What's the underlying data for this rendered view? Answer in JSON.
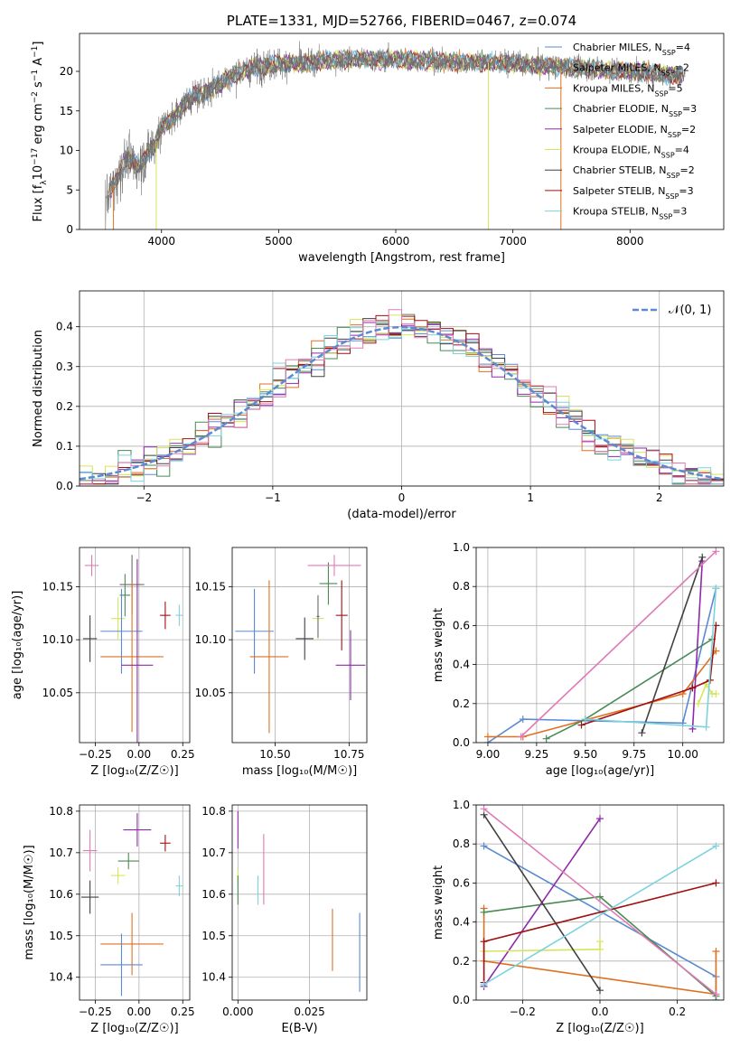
{
  "colors": {
    "cm": "#5b8ad3",
    "sm": "#6c6c6c",
    "km": "#e07020",
    "ce": "#4a8a55",
    "se": "#8e2aa8",
    "ke": "#d5e55a",
    "cs": "#404040",
    "ss": "#a01010",
    "ks": "#7dd3dc",
    "pink": "#e07ab5",
    "norm": "#5b8ad3"
  },
  "chart_data": [
    {
      "id": "spectrum",
      "type": "line",
      "title": "PLATE=1331, MJD=52766, FIBERID=0467, z=0.074",
      "xlabel": "wavelength [Angstrom, rest frame]",
      "ylabel_parts": [
        "Flux [f",
        "λ",
        "10",
        "−17",
        " erg cm",
        "−2",
        " s",
        "−1",
        " A",
        "−1",
        "]"
      ],
      "xlim": [
        3300,
        8800
      ],
      "ylim": [
        0,
        24.8
      ],
      "xticks": [
        "4000",
        "5000",
        "6000",
        "7000",
        "8000"
      ],
      "xtick_values": [
        4000,
        5000,
        6000,
        7000,
        8000
      ],
      "yticks": [
        "0",
        "5",
        "10",
        "15",
        "20"
      ],
      "ytick_values": [
        0,
        5,
        10,
        15,
        20
      ],
      "continuum_x": [
        3500,
        3600,
        3700,
        3800,
        3900,
        3950,
        4000,
        4100,
        4200,
        4300,
        4400,
        4500,
        4600,
        4800,
        5000,
        5200,
        5500,
        6000,
        6500,
        7000,
        7500,
        8000,
        8400
      ],
      "continuum_y": [
        3,
        6,
        9,
        8,
        10,
        11,
        13,
        14,
        16,
        17,
        17.5,
        18.5,
        19.5,
        20.5,
        21,
        21,
        21.5,
        21.5,
        21.2,
        21,
        20.5,
        20,
        19.5
      ],
      "legend": [
        {
          "key": "cm",
          "pre": "Chabrier MILES, N",
          "sub": "SSP",
          "post": "=4"
        },
        {
          "key": "sm",
          "pre": "Salpeter MILES, N",
          "sub": "SSP",
          "post": "=2"
        },
        {
          "key": "km",
          "pre": "Kroupa MILES, N",
          "sub": "SSP",
          "post": "=5"
        },
        {
          "key": "ce",
          "pre": "Chabrier ELODIE, N",
          "sub": "SSP",
          "post": "=3"
        },
        {
          "key": "se",
          "pre": "Salpeter ELODIE, N",
          "sub": "SSP",
          "post": "=2"
        },
        {
          "key": "ke",
          "pre": "Kroupa ELODIE, N",
          "sub": "SSP",
          "post": "=4"
        },
        {
          "key": "cs",
          "pre": "Chabrier STELIB, N",
          "sub": "SSP",
          "post": "=2"
        },
        {
          "key": "ss",
          "pre": "Salpeter STELIB, N",
          "sub": "SSP",
          "post": "=3"
        },
        {
          "key": "ks",
          "pre": "Kroupa STELIB, N",
          "sub": "SSP",
          "post": "=3"
        }
      ]
    },
    {
      "id": "residuals",
      "type": "line",
      "xlabel": "(data-model)/error",
      "ylabel": "Normed distribution",
      "xlim": [
        -2.5,
        2.5
      ],
      "ylim": [
        0,
        0.49
      ],
      "xticks": [
        "−2",
        "−1",
        "0",
        "1",
        "2"
      ],
      "xtick_values": [
        -2,
        -1,
        0,
        1,
        2
      ],
      "yticks": [
        "0.0",
        "0.1",
        "0.2",
        "0.3",
        "0.4"
      ],
      "ytick_values": [
        0,
        0.1,
        0.2,
        0.3,
        0.4
      ],
      "legend": [
        {
          "key": "norm",
          "label": "𝒩(0, 1)"
        }
      ],
      "bin_width": 0.1,
      "normal_sigma": 1.0
    },
    {
      "id": "age_vs_Z",
      "type": "scatter",
      "xlabel": "Z [log₁₀(Z/Z☉)]",
      "ylabel": "age  [log₁₀(age/yr)]",
      "xlim": [
        -0.34,
        0.29
      ],
      "ylim": [
        10.003,
        10.187
      ],
      "xticks": [
        "−0.25",
        "0.00",
        "0.25"
      ],
      "xtick_values": [
        -0.25,
        0,
        0.25
      ],
      "yticks": [
        "10.05",
        "10.10",
        "10.15"
      ],
      "ytick_values": [
        10.05,
        10.1,
        10.15
      ],
      "points": [
        {
          "key": "pink",
          "x": -0.27,
          "y": 10.17,
          "ex": 0.04,
          "ey": 0.01
        },
        {
          "key": "cs",
          "x": -0.28,
          "y": 10.101,
          "ex": 0.04,
          "ey": 0.022
        },
        {
          "key": "ke",
          "x": -0.12,
          "y": 10.12,
          "ex": 0.04,
          "ey": 0.02
        },
        {
          "key": "ce",
          "x": -0.08,
          "y": 10.142,
          "ex": 0.03,
          "ey": 0.02
        },
        {
          "key": "cm",
          "x": -0.1,
          "y": 10.108,
          "ex": 0.12,
          "ey": 0.04
        },
        {
          "key": "sm",
          "x": -0.04,
          "y": 10.152,
          "ex": 0.07,
          "ey": 0.028
        },
        {
          "key": "km",
          "x": -0.04,
          "y": 10.084,
          "ex": 0.18,
          "ey": 0.071
        },
        {
          "key": "se",
          "x": -0.01,
          "y": 10.076,
          "ex": 0.09,
          "ey": 0.1
        },
        {
          "key": "ss",
          "x": 0.15,
          "y": 10.123,
          "ex": 0.03,
          "ey": 0.013
        },
        {
          "key": "ks",
          "x": 0.23,
          "y": 10.123,
          "ex": 0.02,
          "ey": 0.01
        }
      ]
    },
    {
      "id": "age_vs_mass",
      "type": "scatter",
      "xlabel": "mass [log₁₀(M/M☉)]",
      "ylabel": "",
      "xlim": [
        10.355,
        10.81
      ],
      "ylim": [
        10.003,
        10.187
      ],
      "xticks": [
        "10.50",
        "10.75"
      ],
      "xtick_values": [
        10.5,
        10.75
      ],
      "yticks": [
        "10.05",
        "10.10",
        "10.15"
      ],
      "ytick_values": [
        10.05,
        10.1,
        10.15
      ],
      "points": [
        {
          "key": "cm",
          "x": 10.43,
          "y": 10.108,
          "ex": 0.065,
          "ey": 0.04
        },
        {
          "key": "km",
          "x": 10.48,
          "y": 10.084,
          "ex": 0.065,
          "ey": 0.072
        },
        {
          "key": "cs",
          "x": 10.6,
          "y": 10.101,
          "ex": 0.03,
          "ey": 0.02
        },
        {
          "key": "ke",
          "x": 10.645,
          "y": 10.12,
          "ex": 0.02,
          "ey": 0.02
        },
        {
          "key": "ce",
          "x": 10.68,
          "y": 10.153,
          "ex": 0.03,
          "ey": 0.02
        },
        {
          "key": "sm",
          "x": 10.645,
          "y": 10.122,
          "ex": 0.005,
          "ey": 0.02
        },
        {
          "key": "pink",
          "x": 10.7,
          "y": 10.17,
          "ex": 0.09,
          "ey": 0.01
        },
        {
          "key": "ss",
          "x": 10.725,
          "y": 10.123,
          "ex": 0.02,
          "ey": 0.033
        },
        {
          "key": "se",
          "x": 10.755,
          "y": 10.076,
          "ex": 0.05,
          "ey": 0.033
        }
      ]
    },
    {
      "id": "weight_vs_age",
      "type": "line",
      "xlabel": "age  [log₁₀(age/yr)]",
      "ylabel": "mass weight",
      "xlim": [
        8.94,
        10.21
      ],
      "ylim": [
        0,
        1
      ],
      "xticks": [
        "9.00",
        "9.25",
        "9.50",
        "9.75",
        "10.00"
      ],
      "xtick_values": [
        9,
        9.25,
        9.5,
        9.75,
        10
      ],
      "yticks": [
        "0.0",
        "0.2",
        "0.4",
        "0.6",
        "0.8",
        "1.0"
      ],
      "ytick_values": [
        0,
        0.2,
        0.4,
        0.6,
        0.8,
        1
      ],
      "series": [
        {
          "key": "cm",
          "x": [
            9.0,
            9.18,
            10.0,
            10.17
          ],
          "y": [
            0.0,
            0.12,
            0.1,
            0.79
          ]
        },
        {
          "key": "km",
          "x": [
            9.0,
            9.18,
            10.0,
            10.17
          ],
          "y": [
            0.03,
            0.03,
            0.25,
            0.47
          ]
        },
        {
          "key": "ce",
          "x": [
            9.3,
            9.5,
            10.15
          ],
          "y": [
            0.02,
            0.12,
            0.53
          ]
        },
        {
          "key": "se",
          "x": [
            10.05,
            10.1
          ],
          "y": [
            0.07,
            0.93
          ]
        },
        {
          "key": "ke",
          "x": [
            10.08,
            10.12,
            10.15,
            10.17
          ],
          "y": [
            0.2,
            0.3,
            0.25,
            0.25
          ]
        },
        {
          "key": "cs",
          "x": [
            9.79,
            10.1
          ],
          "y": [
            0.05,
            0.95
          ]
        },
        {
          "key": "ss",
          "x": [
            9.48,
            10.05,
            10.14,
            10.17
          ],
          "y": [
            0.09,
            0.28,
            0.32,
            0.6
          ]
        },
        {
          "key": "ks",
          "x": [
            9.5,
            10.12,
            10.17
          ],
          "y": [
            0.12,
            0.08,
            0.79
          ]
        },
        {
          "key": "pink",
          "x": [
            9.17,
            10.17
          ],
          "y": [
            0.03,
            0.98
          ]
        }
      ]
    },
    {
      "id": "mass_vs_Z",
      "type": "scatter",
      "xlabel": "Z [log₁₀(Z/Z☉)]",
      "ylabel": "mass [log₁₀(M/M☉)]",
      "xlim": [
        -0.34,
        0.29
      ],
      "ylim": [
        10.345,
        10.815
      ],
      "xticks": [
        "−0.25",
        "0.00",
        "0.25"
      ],
      "xtick_values": [
        -0.25,
        0,
        0.25
      ],
      "yticks": [
        "10.4",
        "10.5",
        "10.6",
        "10.7",
        "10.8"
      ],
      "ytick_values": [
        10.4,
        10.5,
        10.6,
        10.7,
        10.8
      ],
      "points": [
        {
          "key": "pink",
          "x": -0.28,
          "y": 10.705,
          "ex": 0.04,
          "ey": 0.05
        },
        {
          "key": "cs",
          "x": -0.28,
          "y": 10.593,
          "ex": 0.05,
          "ey": 0.04
        },
        {
          "key": "ke",
          "x": -0.12,
          "y": 10.645,
          "ex": 0.04,
          "ey": 0.02
        },
        {
          "key": "ce",
          "x": -0.06,
          "y": 10.68,
          "ex": 0.06,
          "ey": 0.02
        },
        {
          "key": "se",
          "x": -0.01,
          "y": 10.755,
          "ex": 0.08,
          "ey": 0.04
        },
        {
          "key": "ss",
          "x": 0.15,
          "y": 10.723,
          "ex": 0.03,
          "ey": 0.02
        },
        {
          "key": "ks",
          "x": 0.23,
          "y": 10.62,
          "ex": 0.02,
          "ey": 0.025
        },
        {
          "key": "km",
          "x": -0.04,
          "y": 10.48,
          "ex": 0.18,
          "ey": 0.075
        },
        {
          "key": "cm",
          "x": -0.1,
          "y": 10.43,
          "ex": 0.12,
          "ey": 0.075
        }
      ]
    },
    {
      "id": "mass_vs_EBV",
      "type": "scatter",
      "xlabel": "E(B-V)",
      "ylabel": "",
      "xlim": [
        -0.002,
        0.045
      ],
      "ylim": [
        10.345,
        10.815
      ],
      "xticks": [
        "0.000",
        "0.025"
      ],
      "xtick_values": [
        0,
        0.025
      ],
      "yticks": [
        "10.4",
        "10.5",
        "10.6",
        "10.7",
        "10.8"
      ],
      "ytick_values": [
        10.4,
        10.5,
        10.6,
        10.7,
        10.8
      ],
      "points": [
        {
          "key": "se",
          "x": 0.0,
          "y": 10.755,
          "ex": 0,
          "ey": 0.045
        },
        {
          "key": "ke",
          "x": 0.0,
          "y": 10.64,
          "ex": 0,
          "ey": 0.02
        },
        {
          "key": "ce",
          "x": 0.0,
          "y": 10.61,
          "ex": 0,
          "ey": 0.035
        },
        {
          "key": "ks",
          "x": 0.007,
          "y": 10.61,
          "ex": 0,
          "ey": 0.035
        },
        {
          "key": "pink",
          "x": 0.009,
          "y": 10.66,
          "ex": 0,
          "ey": 0.085
        },
        {
          "key": "km",
          "x": 0.033,
          "y": 10.49,
          "ex": 0,
          "ey": 0.075
        },
        {
          "key": "cm",
          "x": 0.0425,
          "y": 10.46,
          "ex": 0,
          "ey": 0.095
        }
      ]
    },
    {
      "id": "weight_vs_Z",
      "type": "line",
      "xlabel": "Z [log₁₀(Z/Z☉)]",
      "ylabel": "mass weight",
      "xlim": [
        -0.32,
        0.32
      ],
      "ylim": [
        0,
        1
      ],
      "xticks": [
        "−0.2",
        "0.0",
        "0.2"
      ],
      "xtick_values": [
        -0.2,
        0,
        0.2
      ],
      "yticks": [
        "0.0",
        "0.2",
        "0.4",
        "0.6",
        "0.8",
        "1.0"
      ],
      "ytick_values": [
        0,
        0.2,
        0.4,
        0.6,
        0.8,
        1
      ],
      "series": [
        {
          "key": "cm",
          "x": [
            -0.3,
            0.3,
            0.3
          ],
          "y": [
            0.79,
            0.12,
            0.0
          ]
        },
        {
          "key": "km",
          "x": [
            -0.3,
            -0.3,
            0.3,
            0.3
          ],
          "y": [
            0.47,
            0.2,
            0.03,
            0.25
          ]
        },
        {
          "key": "ce",
          "x": [
            -0.3,
            0.0,
            0.3
          ],
          "y": [
            0.45,
            0.53,
            0.02
          ]
        },
        {
          "key": "se",
          "x": [
            -0.3,
            0.0
          ],
          "y": [
            0.07,
            0.93
          ]
        },
        {
          "key": "ke",
          "x": [
            -0.3,
            0.0,
            0.0
          ],
          "y": [
            0.25,
            0.26,
            0.3
          ]
        },
        {
          "key": "cs",
          "x": [
            -0.3,
            0.0
          ],
          "y": [
            0.95,
            0.05
          ]
        },
        {
          "key": "ss",
          "x": [
            -0.3,
            -0.3,
            0.3
          ],
          "y": [
            0.09,
            0.3,
            0.6
          ]
        },
        {
          "key": "ks",
          "x": [
            -0.3,
            0.3
          ],
          "y": [
            0.08,
            0.79
          ]
        },
        {
          "key": "pink",
          "x": [
            -0.3,
            0.3
          ],
          "y": [
            0.98,
            0.03
          ]
        }
      ]
    }
  ]
}
